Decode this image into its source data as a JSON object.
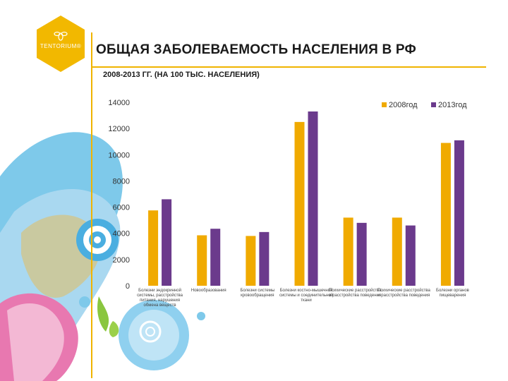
{
  "header": {
    "title": "ОБЩАЯ ЗАБОЛЕВАЕМОСТЬ НАСЕЛЕНИЯ В РФ",
    "subtitle": "2008-2013 ГГ. (НА 100 ТЫС. НАСЕЛЕНИЯ)",
    "logo_text": "TENTORIUM®"
  },
  "colors": {
    "accent": "#f0b400",
    "series_2008": "#f0aa00",
    "series_2013": "#6b3a8c"
  },
  "chart_data": {
    "type": "bar",
    "categories": [
      "Болезни эндокринной системы, расстройства питания, нарушения обмена веществ",
      "Новообразования",
      "Болезни системы кровообращения",
      "Болезни костно-мышечной системы и соединительной ткани",
      "Психические расстройства и расстройства поведения",
      "Психические расстройства и расстройства поведения",
      "Болезни органов пищеварения"
    ],
    "series": [
      {
        "name": "2008год",
        "values": [
          5750,
          3850,
          3800,
          12500,
          5200,
          5200,
          10900
        ]
      },
      {
        "name": "2013год",
        "values": [
          6600,
          4350,
          4100,
          13300,
          4800,
          4600,
          11100
        ]
      }
    ],
    "ylim": [
      0,
      14000
    ],
    "yticks": [
      "14000",
      "12000",
      "10000",
      "8000",
      "6000",
      "4000",
      "2000",
      "0"
    ],
    "grid": false,
    "legend_position": "top-right"
  }
}
